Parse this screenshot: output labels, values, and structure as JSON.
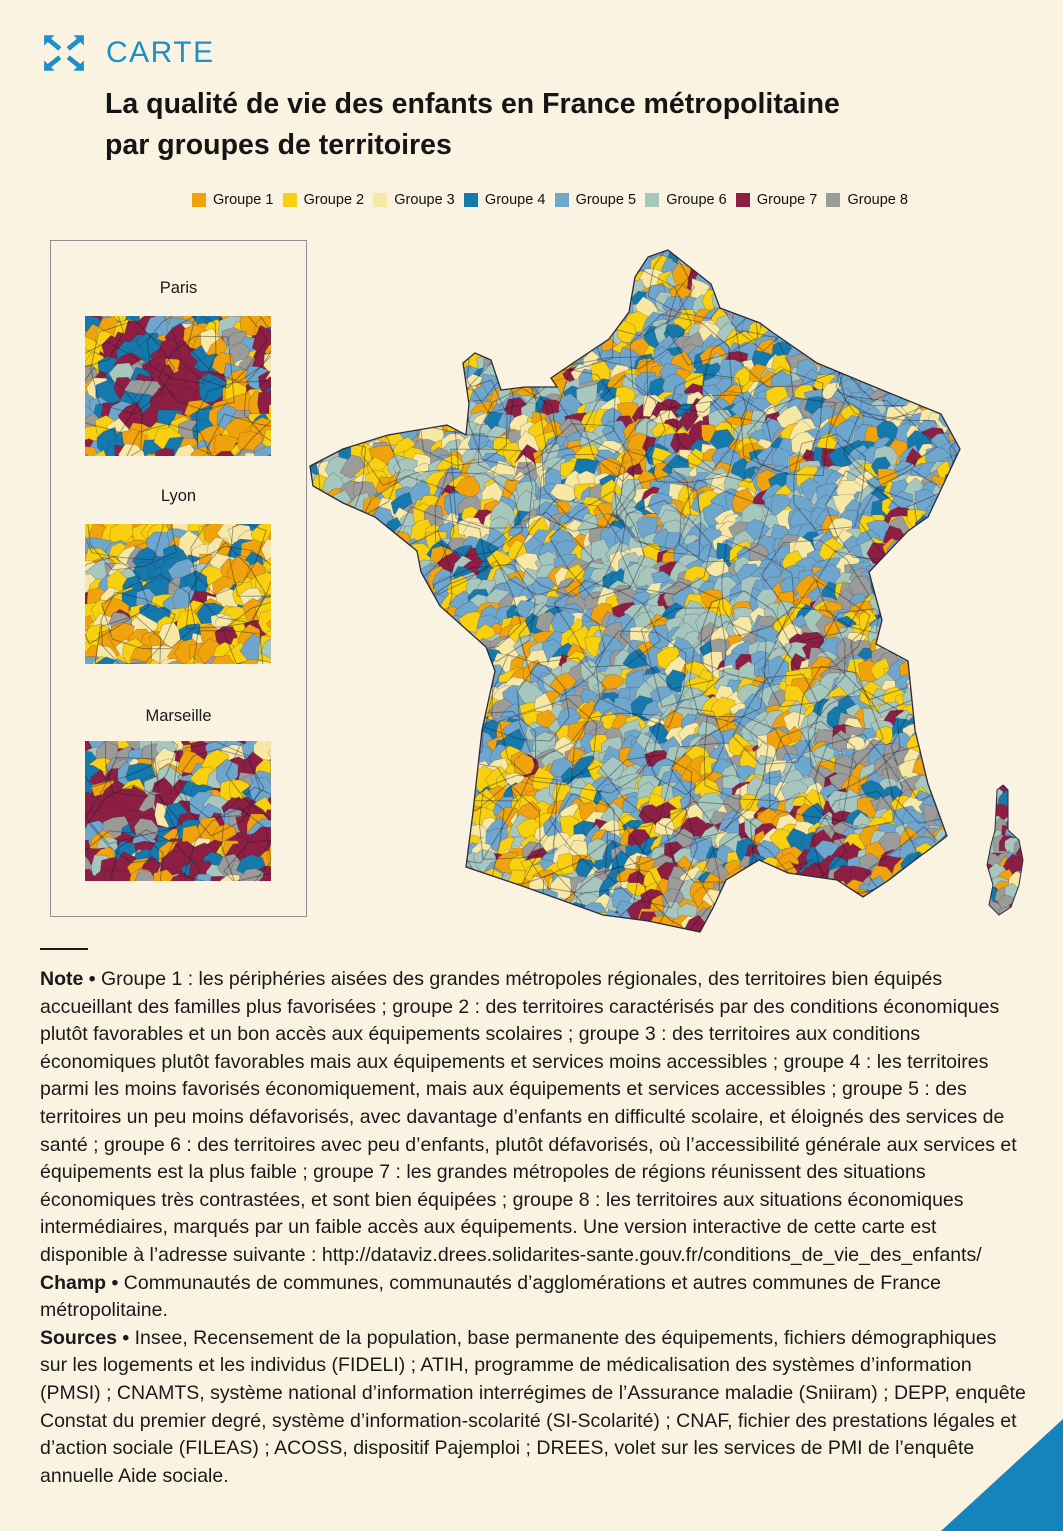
{
  "header": {
    "kicker": "CARTE",
    "title_line1": "La qualité de vie des enfants en France métropolitaine",
    "title_line2": "par groupes de territoires",
    "accent_color": "#1E8FC8"
  },
  "legend": {
    "items": [
      {
        "label": "Groupe 1",
        "color": "#F0A30C"
      },
      {
        "label": "Groupe 2",
        "color": "#F8D010"
      },
      {
        "label": "Groupe 3",
        "color": "#F8E8A6"
      },
      {
        "label": "Groupe 4",
        "color": "#1579AE"
      },
      {
        "label": "Groupe 5",
        "color": "#6FA6CD"
      },
      {
        "label": "Groupe 6",
        "color": "#A6C6BE"
      },
      {
        "label": "Groupe 7",
        "color": "#8E1E43"
      },
      {
        "label": "Groupe 8",
        "color": "#9B9B9A"
      }
    ]
  },
  "insets": {
    "paris_label": "Paris",
    "lyon_label": "Lyon",
    "marseille_label": "Marseille"
  },
  "footnotes": {
    "note_label": "Note •",
    "note_text": "Groupe 1 : les périphéries aisées des grandes métropoles régionales, des territoires bien équipés accueillant des familles plus favorisées ; groupe 2 : des territoires caractérisés par des conditions économiques plutôt favorables et un bon accès aux équipements scolaires ; groupe 3 : des territoires aux conditions économiques plutôt favorables mais aux équipements et services moins accessibles ; groupe 4 : les territoires parmi les moins favorisés économiquement, mais aux équipements et services accessibles ; groupe 5 : des territoires un peu moins défavorisés, avec davantage d’enfants en difficulté scolaire, et éloignés des services de santé ; groupe 6 : des territoires avec peu d’enfants, plutôt défavorisés, où l’accessibilité générale aux services et équipements est la plus faible ; groupe 7 : les grandes métropoles de régions réunissent des situations économiques très contrastées, et sont bien équipées ; groupe 8 : les territoires aux situations économiques intermédiaires, marqués par un faible accès aux équipements. Une version interactive de cette carte est disponible à l’adresse suivante : ",
    "note_url": "http://dataviz.drees.solidarites-sante.gouv.fr/conditions_de_vie_des_enfants/",
    "champ_label": "Champ •",
    "champ_text": "Communautés de communes, communautés d’agglomérations et autres communes de France métropolitaine.",
    "sources_label": "Sources •",
    "sources_text": "Insee, Recensement de la population, base permanente des équipements, fichiers démographiques sur les logements et les individus (FIDELI) ; ATIH, programme de médicalisation des systèmes d’information (PMSI) ; CNAMTS, système national d’information interrégimes de l’Assurance maladie (Sniiram) ; DEPP, enquête Constat du premier degré, système d’information-scolarité (SI-Scolarité) ; CNAF, fichier des prestations légales et d’action sociale (FILEAS) ; ACOSS, dispositif Pajemploi ; DREES, volet sur les services de PMI de l’enquête annuelle Aide sociale."
  }
}
